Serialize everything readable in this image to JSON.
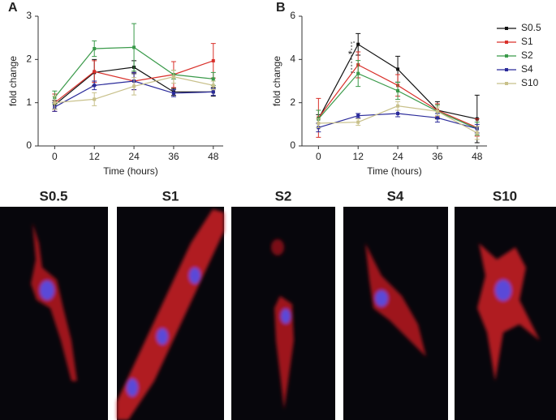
{
  "chart_data": [
    {
      "type": "line",
      "panel_label": "A",
      "x_label": "Time (hours)",
      "y_label": "fold change",
      "x": [
        0,
        12,
        24,
        36,
        48
      ],
      "xlim": [
        -5,
        51
      ],
      "xticks": [
        0,
        12,
        24,
        36,
        48
      ],
      "ylim": [
        0,
        3
      ],
      "yticks": [
        0,
        1,
        2,
        3
      ],
      "series": [
        {
          "color": "#111111",
          "values": [
            0.95,
            1.7,
            1.82,
            1.25,
            1.25
          ],
          "errors": [
            0.1,
            0.3,
            0.15,
            0.08,
            0.1
          ]
        },
        {
          "color": "#d9302a",
          "values": [
            1.0,
            1.72,
            1.5,
            1.65,
            1.97
          ],
          "errors": [
            0.2,
            0.25,
            0.2,
            0.3,
            0.4
          ]
        },
        {
          "color": "#3a9a4a",
          "values": [
            1.12,
            2.25,
            2.28,
            1.65,
            1.55
          ],
          "errors": [
            0.15,
            0.18,
            0.55,
            0.1,
            0.15
          ]
        },
        {
          "color": "#2a2a9a",
          "values": [
            0.9,
            1.4,
            1.5,
            1.22,
            1.25
          ],
          "errors": [
            0.1,
            0.1,
            0.2,
            0.08,
            0.08
          ]
        },
        {
          "color": "#c8c08a",
          "values": [
            1.0,
            1.08,
            1.38,
            1.6,
            1.4
          ],
          "errors": [
            0.15,
            0.15,
            0.2,
            0.15,
            0.1
          ]
        }
      ]
    },
    {
      "type": "line",
      "panel_label": "B",
      "x_label": "Time (hours)",
      "y_label": "fold change",
      "x": [
        0,
        12,
        24,
        36,
        48
      ],
      "xlim": [
        -5,
        51
      ],
      "xticks": [
        0,
        12,
        24,
        36,
        48
      ],
      "ylim": [
        0,
        6
      ],
      "yticks": [
        0,
        2,
        4,
        6
      ],
      "legend": "right",
      "annotation": "*",
      "series": [
        {
          "name": "S0.5",
          "color": "#111111",
          "values": [
            1.25,
            4.7,
            3.55,
            1.65,
            1.25
          ],
          "errors": [
            0.2,
            0.5,
            0.6,
            0.4,
            1.1
          ]
        },
        {
          "name": "S1",
          "color": "#d9302a",
          "values": [
            1.3,
            3.75,
            2.8,
            1.65,
            0.85
          ],
          "errors": [
            0.9,
            0.6,
            0.5,
            0.3,
            0.4
          ]
        },
        {
          "name": "S2",
          "color": "#3a9a4a",
          "values": [
            1.25,
            3.35,
            2.55,
            1.6,
            0.8
          ],
          "errors": [
            0.4,
            0.6,
            0.4,
            0.3,
            0.3
          ]
        },
        {
          "name": "S4",
          "color": "#2a2a9a",
          "values": [
            0.85,
            1.4,
            1.5,
            1.3,
            0.8
          ],
          "errors": [
            0.2,
            0.1,
            0.15,
            0.2,
            0.2
          ]
        },
        {
          "name": "S10",
          "color": "#c8c08a",
          "values": [
            1.05,
            1.1,
            1.85,
            1.6,
            0.6
          ],
          "errors": [
            0.2,
            0.15,
            0.2,
            0.2,
            0.3
          ]
        }
      ]
    }
  ],
  "images": {
    "labels": [
      "S0.5",
      "S1",
      "S2",
      "S4",
      "S10"
    ]
  }
}
